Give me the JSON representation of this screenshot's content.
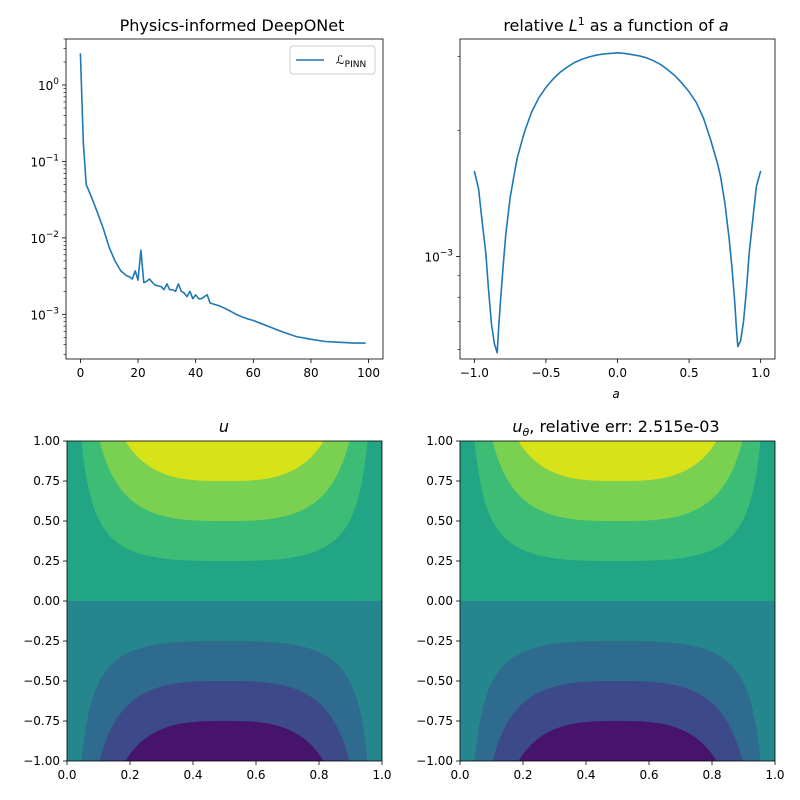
{
  "chart_data": [
    {
      "type": "line",
      "title": "Physics-informed DeepONet",
      "yscale": "log",
      "xlim": [
        -5,
        105
      ],
      "ylim": [
        0.00026,
        4.0
      ],
      "xticks": [
        "0",
        "20",
        "40",
        "60",
        "80",
        "100"
      ],
      "yticks": [
        "10^0",
        "10^-1",
        "10^-2",
        "10^-3"
      ],
      "legend": "top-right",
      "series": [
        {
          "name": "ℒ_PINN",
          "color": "#1f77b4",
          "x": [
            0,
            1,
            2,
            4,
            6,
            8,
            10,
            12,
            14,
            16,
            17,
            18,
            19,
            20,
            21,
            22,
            23,
            24,
            25,
            26,
            28,
            29,
            30,
            31,
            32,
            33,
            34,
            35,
            36,
            37,
            38,
            39,
            40,
            41,
            42,
            43,
            44,
            45,
            48,
            50,
            52,
            54,
            56,
            58,
            60,
            65,
            70,
            75,
            80,
            85,
            90,
            95,
            99
          ],
          "y": [
            2.6,
            0.18,
            0.05,
            0.033,
            0.021,
            0.013,
            0.0075,
            0.005,
            0.0037,
            0.0032,
            0.0031,
            0.0029,
            0.0037,
            0.0028,
            0.0069,
            0.0026,
            0.0027,
            0.0029,
            0.0026,
            0.0024,
            0.0023,
            0.0021,
            0.0025,
            0.0021,
            0.0021,
            0.002,
            0.0025,
            0.002,
            0.0019,
            0.0017,
            0.002,
            0.0016,
            0.0018,
            0.0016,
            0.0016,
            0.0017,
            0.0018,
            0.0014,
            0.0013,
            0.0012,
            0.0011,
            0.001,
            0.00093,
            0.00087,
            0.00083,
            0.0007,
            0.00059,
            0.00051,
            0.00047,
            0.00044,
            0.00043,
            0.00042,
            0.00042
          ]
        }
      ]
    },
    {
      "type": "line",
      "title_prefix": "relative ",
      "title_math": "L",
      "title_sup": "1",
      "title_mid": " as a function of ",
      "title_var": "a",
      "xlabel": "a",
      "yscale": "log",
      "xlim": [
        -1.1,
        1.1
      ],
      "ylim": [
        0.00057,
        0.0033
      ],
      "xticks": [
        "−1.0",
        "−0.5",
        "0.0",
        "0.5",
        "1.0"
      ],
      "yticks": [
        "10^-3"
      ],
      "series": [
        {
          "color": "#1f77b4",
          "x": [
            -1.0,
            -0.97,
            -0.95,
            -0.92,
            -0.9,
            -0.88,
            -0.86,
            -0.84,
            -0.83,
            -0.82,
            -0.8,
            -0.78,
            -0.75,
            -0.72,
            -0.7,
            -0.65,
            -0.6,
            -0.55,
            -0.5,
            -0.45,
            -0.4,
            -0.35,
            -0.3,
            -0.25,
            -0.2,
            -0.15,
            -0.1,
            -0.05,
            0.0,
            0.05,
            0.1,
            0.15,
            0.2,
            0.25,
            0.3,
            0.35,
            0.4,
            0.45,
            0.5,
            0.55,
            0.6,
            0.65,
            0.7,
            0.72,
            0.75,
            0.78,
            0.8,
            0.82,
            0.83,
            0.84,
            0.86,
            0.88,
            0.9,
            0.92,
            0.95,
            0.97,
            1.0
          ],
          "y": [
            0.0016,
            0.00145,
            0.00125,
            0.00102,
            0.00083,
            0.00069,
            0.00062,
            0.00059,
            0.00068,
            0.00076,
            0.00094,
            0.00113,
            0.00138,
            0.00158,
            0.00172,
            0.00198,
            0.00221,
            0.00239,
            0.00253,
            0.00265,
            0.00275,
            0.00283,
            0.0029,
            0.00295,
            0.00299,
            0.00302,
            0.00304,
            0.00305,
            0.00306,
            0.00305,
            0.00303,
            0.00301,
            0.00298,
            0.00293,
            0.00287,
            0.00279,
            0.0027,
            0.00259,
            0.00247,
            0.00233,
            0.00214,
            0.0019,
            0.00166,
            0.00155,
            0.00134,
            0.0011,
            0.00094,
            0.00077,
            0.00068,
            0.00061,
            0.00063,
            0.0007,
            0.00083,
            0.00102,
            0.00127,
            0.00147,
            0.0016
          ]
        }
      ]
    },
    {
      "type": "contour",
      "title": "u",
      "xlim": [
        0,
        1
      ],
      "ylim": [
        -1,
        1
      ],
      "xticks": [
        "0.0",
        "0.2",
        "0.4",
        "0.6",
        "0.8",
        "1.0"
      ],
      "yticks": [
        "1.00",
        "0.75",
        "0.50",
        "0.25",
        "0.00",
        "−0.25",
        "−0.50",
        "−0.75",
        "−1.00"
      ],
      "levels": [
        -1.0,
        -0.75,
        -0.5,
        -0.25,
        0.0,
        0.25,
        0.5,
        0.75,
        1.0
      ],
      "colors": [
        "#46156b",
        "#3d4a8a",
        "#2f6b8e",
        "#25878d",
        "#21a585",
        "#3cbc75",
        "#7ad151",
        "#d8e219"
      ]
    },
    {
      "type": "contour",
      "title_math": "u",
      "title_sub": "θ",
      "title_rest": ", relative err: 2.515e-03",
      "xlim": [
        0,
        1
      ],
      "ylim": [
        -1,
        1
      ],
      "xticks": [
        "0.0",
        "0.2",
        "0.4",
        "0.6",
        "0.8",
        "1.0"
      ],
      "yticks": [
        "1.00",
        "0.75",
        "0.50",
        "0.25",
        "0.00",
        "−0.25",
        "−0.50",
        "−0.75",
        "−1.00"
      ],
      "levels": [
        -1.0,
        -0.75,
        -0.5,
        -0.25,
        0.0,
        0.25,
        0.5,
        0.75,
        1.0
      ],
      "colors": [
        "#46156b",
        "#3d4a8a",
        "#2f6b8e",
        "#25878d",
        "#21a585",
        "#3cbc75",
        "#7ad151",
        "#d8e219"
      ]
    }
  ]
}
